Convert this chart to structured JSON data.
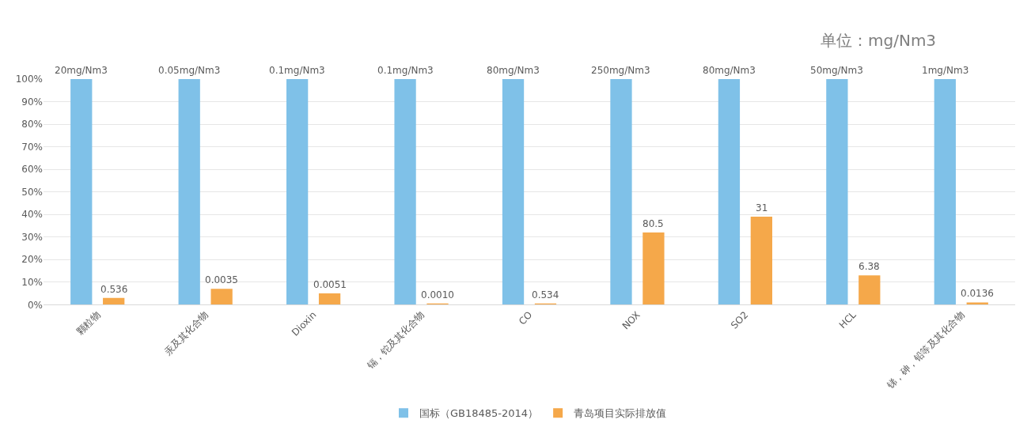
{
  "chart_data": {
    "type": "bar",
    "annotations": [
      "单位：mg/Nm3",
      "20mg/Nm3",
      "0.05mg/Nm3",
      "0.1mg/Nm3",
      "0.1mg/Nm3",
      "80mg/Nm3",
      "250mg/Nm3",
      "80mg/Nm3",
      "50mg/Nm3",
      "1mg/Nm3",
      "0.536",
      "0.0035",
      "0.0051",
      "0.0010",
      "0.534",
      "80.5",
      "31",
      "6.38",
      "0.0136"
    ],
    "categories": [
      "颗粒物",
      "汞及其化合物",
      "Dioxin",
      "镉，铊及其化合物",
      "CO",
      "NOX",
      "SO2",
      "HCL",
      "锑，砷，铅等及其化合物"
    ],
    "series": [
      {
        "name": "国标（GB18485-2014）",
        "color": "#7fc1e8",
        "values": [
          100,
          100,
          100,
          100,
          100,
          100,
          100,
          100,
          100
        ]
      },
      {
        "name": "青岛项目实际排放值",
        "color": "#f5a84a",
        "values": [
          3,
          7,
          5,
          0.5,
          0.5,
          32,
          39,
          13,
          1
        ]
      }
    ],
    "ylim": [
      0,
      100
    ],
    "yticks": [
      {
        "value": 0,
        "label": "0%"
      },
      {
        "value": 10,
        "label": "10%"
      },
      {
        "value": 20,
        "label": "20%"
      },
      {
        "value": 30,
        "label": "30%"
      },
      {
        "value": 40,
        "label": "40%"
      },
      {
        "value": 50,
        "label": "50%"
      },
      {
        "value": 60,
        "label": "60%"
      },
      {
        "value": 70,
        "label": "70%"
      },
      {
        "value": 80,
        "label": "80%"
      },
      {
        "value": 90,
        "label": "90%"
      },
      {
        "value": 100,
        "label": "100%"
      }
    ],
    "grid": "y",
    "legend": "bottom"
  }
}
